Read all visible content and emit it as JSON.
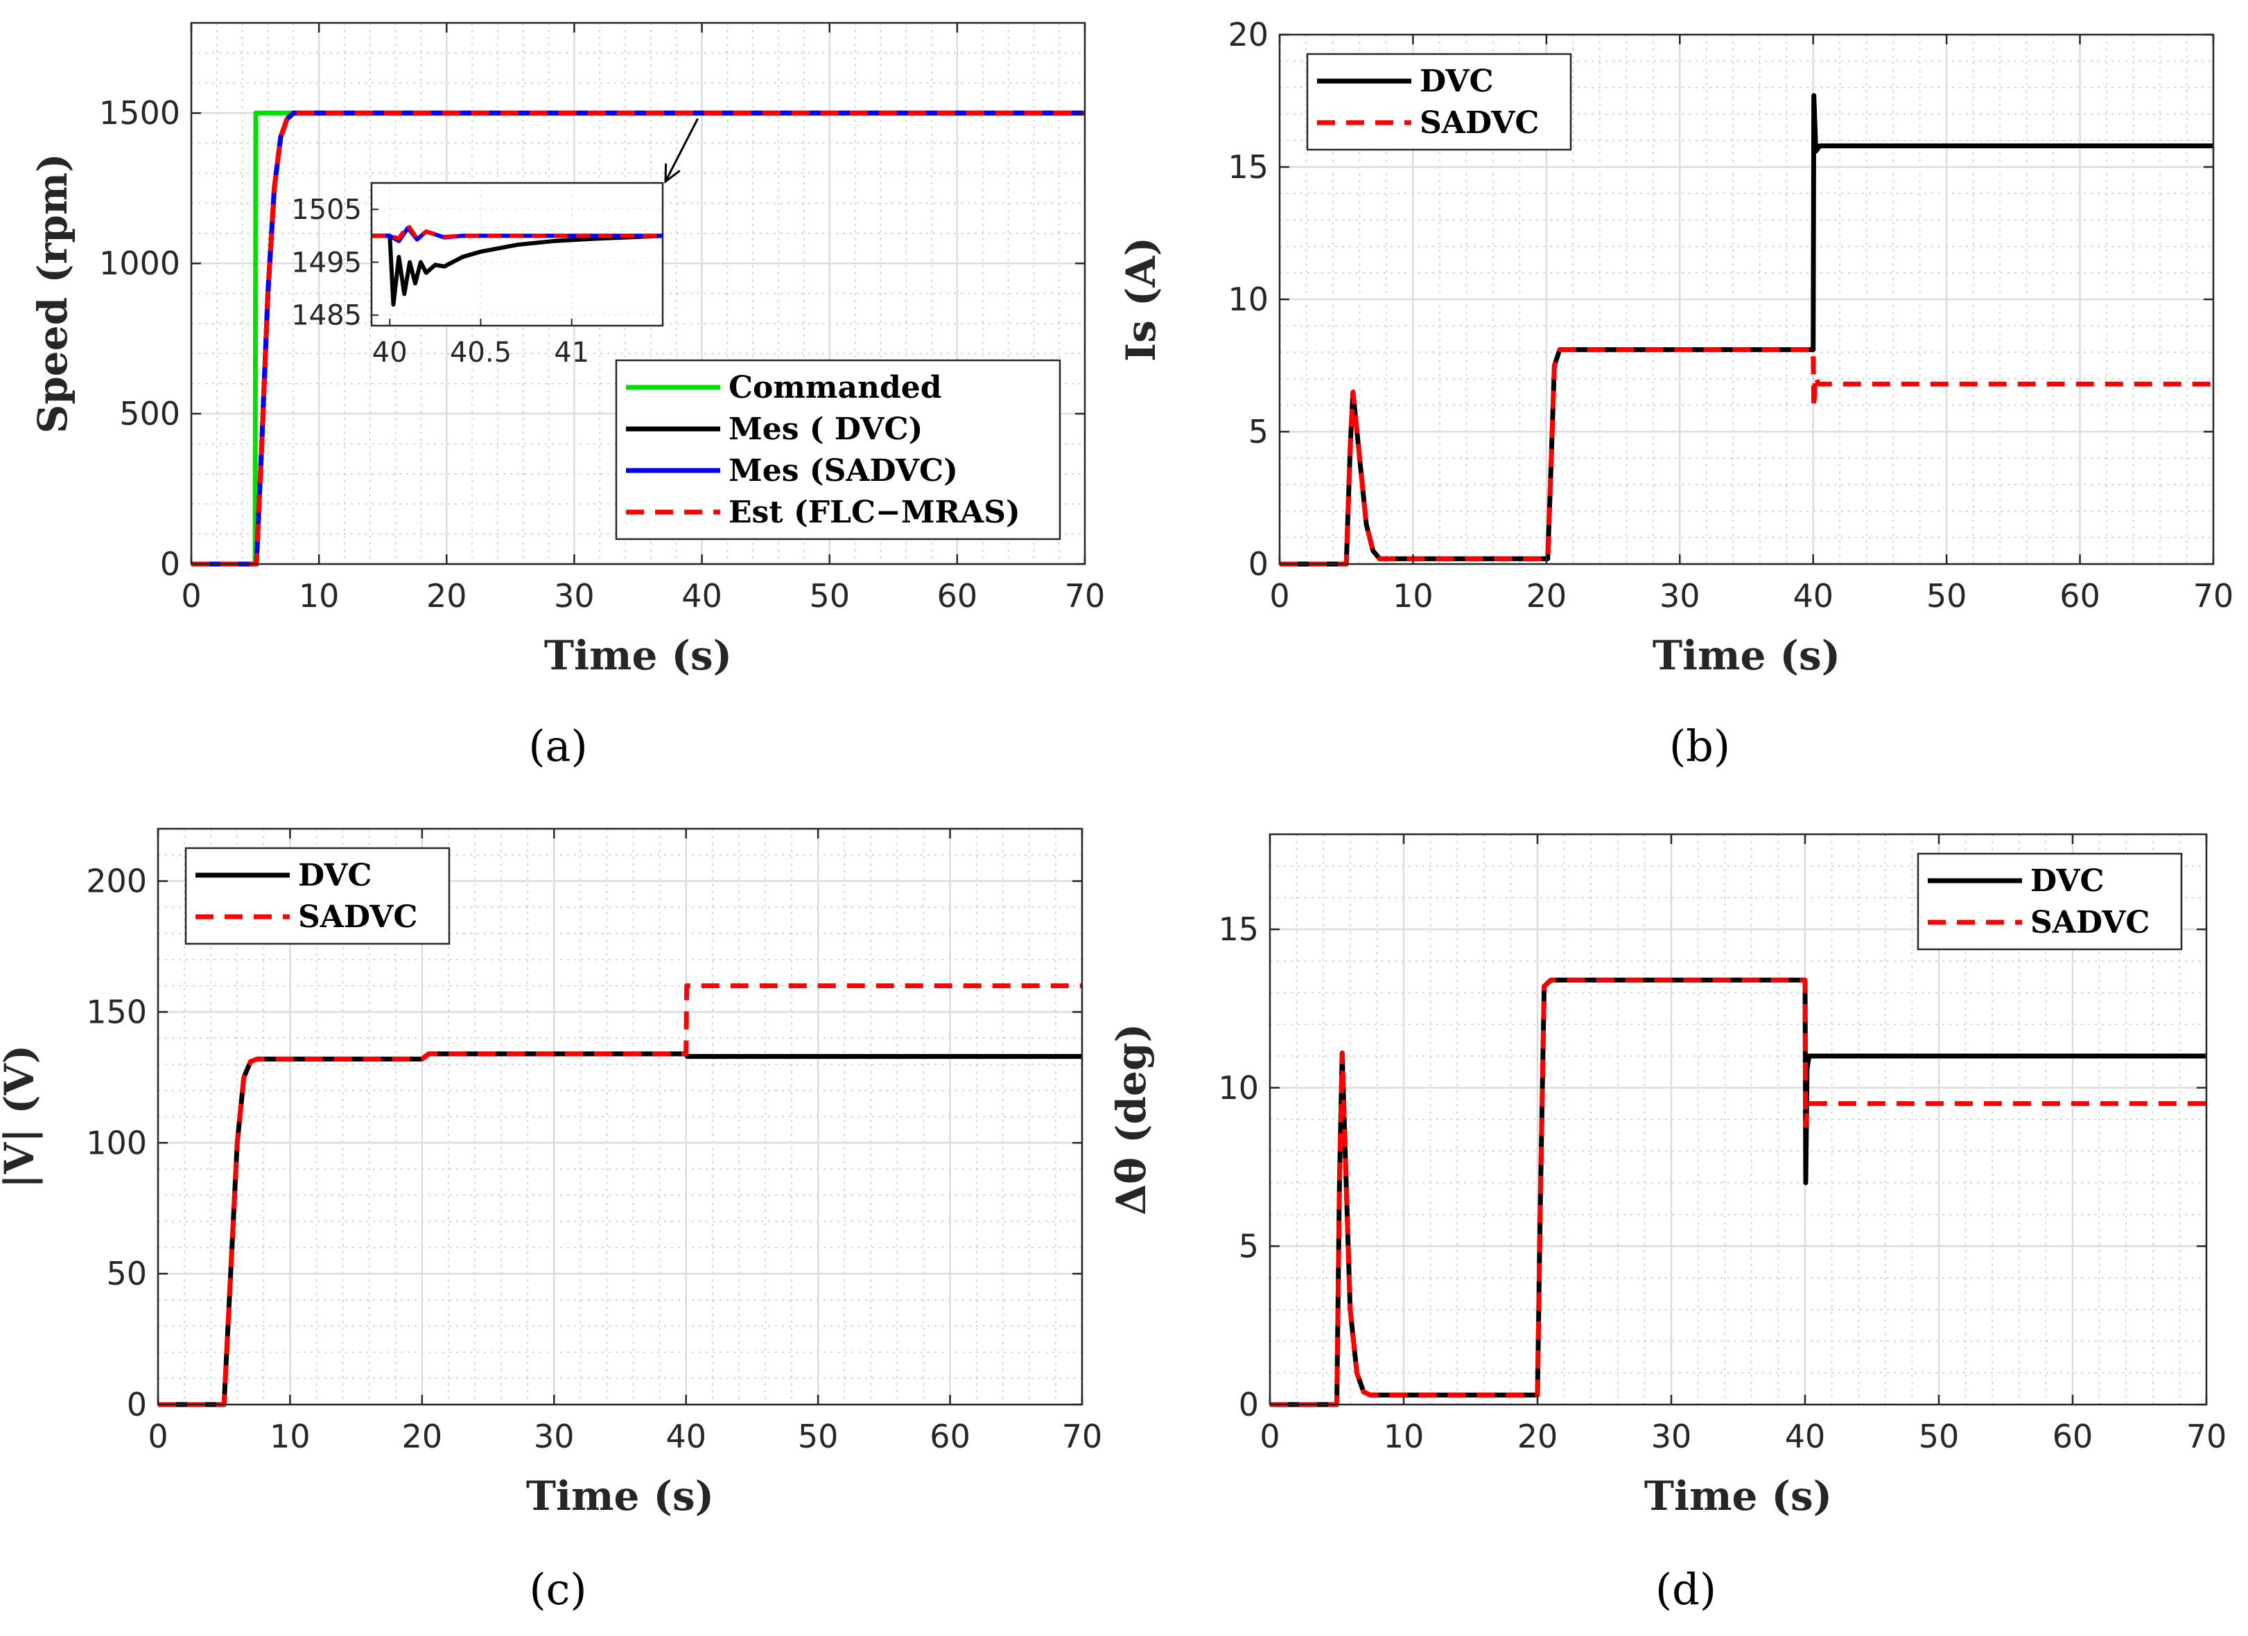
{
  "figure": {
    "panel_labels": [
      "(a)",
      "(b)",
      "(c)",
      "(d)"
    ]
  },
  "colors": {
    "commanded": "#00e000",
    "dvc": "#000000",
    "sadvc_blue": "#0000ff",
    "sadvc_red": "#ff0000"
  },
  "chart_data": [
    {
      "id": "a",
      "type": "line",
      "xlabel": "Time (s)",
      "ylabel": "Speed (rpm)",
      "xlim": [
        0,
        70
      ],
      "ylim": [
        0,
        1800
      ],
      "xticks": [
        0,
        10,
        20,
        30,
        40,
        50,
        60,
        70
      ],
      "yticks": [
        0,
        500,
        1000,
        1500
      ],
      "grid": true,
      "legend_position": "bottom-right",
      "series": [
        {
          "name": "Commanded",
          "color": "#00e000",
          "dash": "solid",
          "x": [
            0,
            5,
            5.05,
            70
          ],
          "y": [
            0,
            0,
            1500,
            1500
          ]
        },
        {
          "name": "Mes ( DVC)",
          "color": "#000000",
          "dash": "solid",
          "x": [
            0,
            5.1,
            5.5,
            6,
            6.5,
            7,
            7.5,
            8,
            70
          ],
          "y": [
            0,
            0,
            380,
            900,
            1250,
            1420,
            1480,
            1500,
            1500
          ]
        },
        {
          "name": "Mes (SADVC)",
          "color": "#0000ff",
          "dash": "solid",
          "x": [
            0,
            5.1,
            5.5,
            6,
            6.5,
            7,
            7.5,
            8,
            70
          ],
          "y": [
            0,
            0,
            380,
            900,
            1250,
            1420,
            1480,
            1500,
            1500
          ]
        },
        {
          "name": "Est (FLC−MRAS)",
          "color": "#ff0000",
          "dash": "dashed",
          "x": [
            0,
            5.1,
            5.5,
            6,
            6.5,
            7,
            7.5,
            8,
            70
          ],
          "y": [
            0,
            0,
            380,
            900,
            1250,
            1420,
            1480,
            1500,
            1500
          ]
        }
      ],
      "inset": {
        "xlim": [
          39.9,
          41.5
        ],
        "ylim": [
          1483,
          1510
        ],
        "xticks": [
          40,
          40.5,
          41
        ],
        "xtick_labels": [
          "40",
          "40.5",
          "41"
        ],
        "yticks": [
          1485,
          1495,
          1505
        ],
        "series": [
          {
            "color": "#000000",
            "dash": "solid",
            "x": [
              39.9,
              40.0,
              40.02,
              40.05,
              40.08,
              40.11,
              40.14,
              40.17,
              40.2,
              40.25,
              40.3,
              40.4,
              40.5,
              40.7,
              40.9,
              41.1,
              41.3,
              41.5
            ],
            "y": [
              1500,
              1500,
              1487,
              1496,
              1489,
              1495,
              1491,
              1495,
              1493,
              1494.5,
              1494.2,
              1496,
              1497,
              1498.3,
              1499,
              1499.4,
              1499.7,
              1500
            ]
          },
          {
            "color": "#0000ff",
            "dash": "solid",
            "x": [
              39.9,
              40.0,
              40.05,
              40.1,
              40.15,
              40.2,
              40.3,
              40.4,
              41.5
            ],
            "y": [
              1500,
              1500,
              1499,
              1501.5,
              1499.3,
              1500.8,
              1499.7,
              1500,
              1500
            ]
          },
          {
            "color": "#ff0000",
            "dash": "dashed",
            "x": [
              39.9,
              40.0,
              40.05,
              40.1,
              40.15,
              40.2,
              40.3,
              40.4,
              41.5
            ],
            "y": [
              1500,
              1500,
              1499.5,
              1502,
              1499.5,
              1500.8,
              1499.8,
              1500,
              1500
            ]
          }
        ],
        "arrow_to": [
          40,
          1500
        ]
      }
    },
    {
      "id": "b",
      "type": "line",
      "xlabel": "Time (s)",
      "ylabel": "Is (A)",
      "xlim": [
        0,
        70
      ],
      "ylim": [
        0,
        20
      ],
      "xticks": [
        0,
        10,
        20,
        30,
        40,
        50,
        60,
        70
      ],
      "yticks": [
        0,
        5,
        10,
        15,
        20
      ],
      "grid": true,
      "legend_position": "top-left",
      "series": [
        {
          "name": "DVC",
          "color": "#000000",
          "dash": "solid",
          "x": [
            0,
            5,
            5.3,
            5.5,
            6,
            6.5,
            7,
            7.5,
            8,
            20.1,
            20.3,
            20.6,
            21,
            40,
            40.05,
            40.2,
            40.5,
            70
          ],
          "y": [
            0,
            0,
            4.5,
            6.5,
            4,
            1.5,
            0.5,
            0.2,
            0.2,
            0.2,
            3,
            7.5,
            8.1,
            8.1,
            17.7,
            15.6,
            15.8,
            15.8
          ]
        },
        {
          "name": "SADVC",
          "color": "#ff0000",
          "dash": "dashed",
          "x": [
            0,
            5,
            5.3,
            5.5,
            6,
            6.5,
            7,
            7.5,
            8,
            20.1,
            20.3,
            20.6,
            21,
            40,
            40.05,
            40.15,
            40.4,
            70
          ],
          "y": [
            0,
            0,
            4.5,
            6.5,
            4,
            1.5,
            0.5,
            0.2,
            0.2,
            0.2,
            3,
            7.5,
            8.1,
            8.1,
            5.9,
            7.1,
            6.8,
            6.8
          ]
        }
      ]
    },
    {
      "id": "c",
      "type": "line",
      "xlabel": "Time (s)",
      "ylabel": "|V|  (V)",
      "xlim": [
        0,
        70
      ],
      "ylim": [
        0,
        220
      ],
      "xticks": [
        0,
        10,
        20,
        30,
        40,
        50,
        60,
        70
      ],
      "yticks": [
        0,
        50,
        100,
        150,
        200
      ],
      "grid": true,
      "legend_position": "top-left",
      "series": [
        {
          "name": "DVC",
          "color": "#000000",
          "dash": "solid",
          "x": [
            0,
            5,
            5.5,
            6,
            6.5,
            7,
            7.5,
            20,
            20.5,
            40,
            40.1,
            70
          ],
          "y": [
            0,
            0,
            50,
            100,
            125,
            131,
            132,
            132,
            134,
            134,
            133,
            133
          ]
        },
        {
          "name": "SADVC",
          "color": "#ff0000",
          "dash": "dashed",
          "x": [
            0,
            5,
            5.5,
            6,
            6.5,
            7,
            7.5,
            20,
            20.5,
            40,
            40.05,
            70
          ],
          "y": [
            0,
            0,
            50,
            100,
            125,
            131,
            132,
            132,
            134,
            134,
            160,
            160
          ]
        }
      ]
    },
    {
      "id": "d",
      "type": "line",
      "xlabel": "Time (s)",
      "ylabel": "Δθ (deg)",
      "xlim": [
        0,
        70
      ],
      "ylim": [
        0,
        18
      ],
      "xticks": [
        0,
        10,
        20,
        30,
        40,
        50,
        60,
        70
      ],
      "yticks": [
        0,
        5,
        10,
        15
      ],
      "grid": true,
      "legend_position": "top-right",
      "series": [
        {
          "name": "DVC",
          "color": "#000000",
          "dash": "solid",
          "x": [
            0,
            5,
            5.2,
            5.4,
            5.7,
            6,
            6.5,
            7,
            7.5,
            20,
            20.2,
            20.5,
            21,
            40,
            40.05,
            40.15,
            40.3,
            70
          ],
          "y": [
            0,
            0,
            7,
            11.1,
            7,
            3,
            1,
            0.4,
            0.3,
            0.3,
            6,
            13.2,
            13.4,
            13.4,
            7,
            10.6,
            11,
            11
          ]
        },
        {
          "name": "SADVC",
          "color": "#ff0000",
          "dash": "dashed",
          "x": [
            0,
            5,
            5.2,
            5.4,
            5.7,
            6,
            6.5,
            7,
            7.5,
            20,
            20.2,
            20.5,
            21,
            40,
            40.05,
            40.2,
            70
          ],
          "y": [
            0,
            0,
            7,
            11.1,
            7,
            3,
            1,
            0.4,
            0.3,
            0.3,
            6,
            13.2,
            13.4,
            13.4,
            8.8,
            9.5,
            9.5
          ]
        }
      ]
    }
  ]
}
